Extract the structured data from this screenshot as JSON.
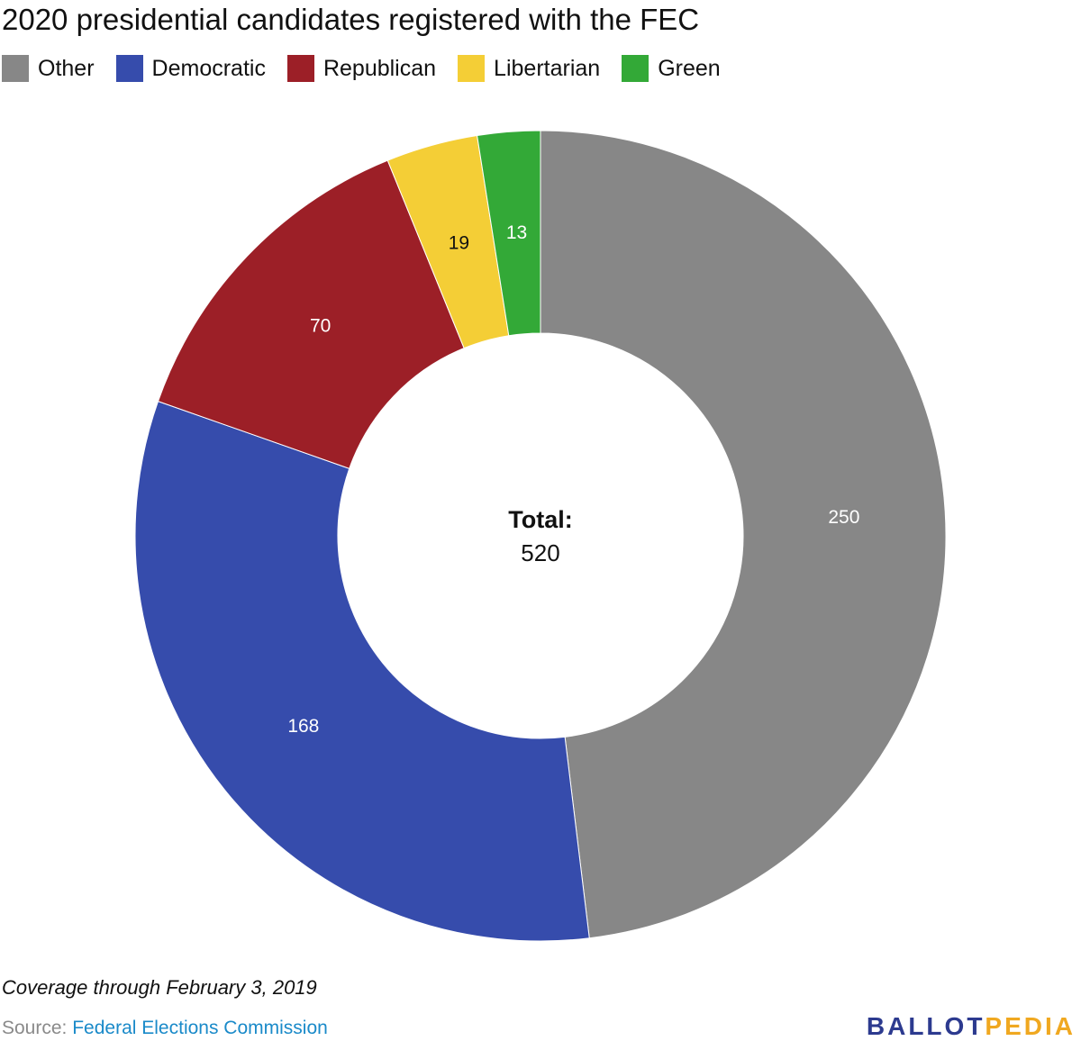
{
  "title": "2020 presidential candidates registered with the FEC",
  "chart_data": {
    "type": "pie",
    "donut": true,
    "categories": [
      "Other",
      "Democratic",
      "Republican",
      "Libertarian",
      "Green"
    ],
    "values": [
      250,
      168,
      70,
      19,
      13
    ],
    "colors": [
      "#878787",
      "#364cac",
      "#9c1f27",
      "#f4ce36",
      "#33a937"
    ],
    "label_colors": [
      "#ffffff",
      "#ffffff",
      "#ffffff",
      "#111111",
      "#ffffff"
    ],
    "center_title": "Total:",
    "center_value": "520",
    "legend_position": "top-left"
  },
  "note": "Coverage through February 3, 2019",
  "source": {
    "prefix": "Source: ",
    "name": "Federal Elections Commission"
  },
  "logo": {
    "part1": "BALLOT",
    "part2": "PEDIA",
    "color1": "#2c3a8f",
    "color2": "#f0a820"
  }
}
